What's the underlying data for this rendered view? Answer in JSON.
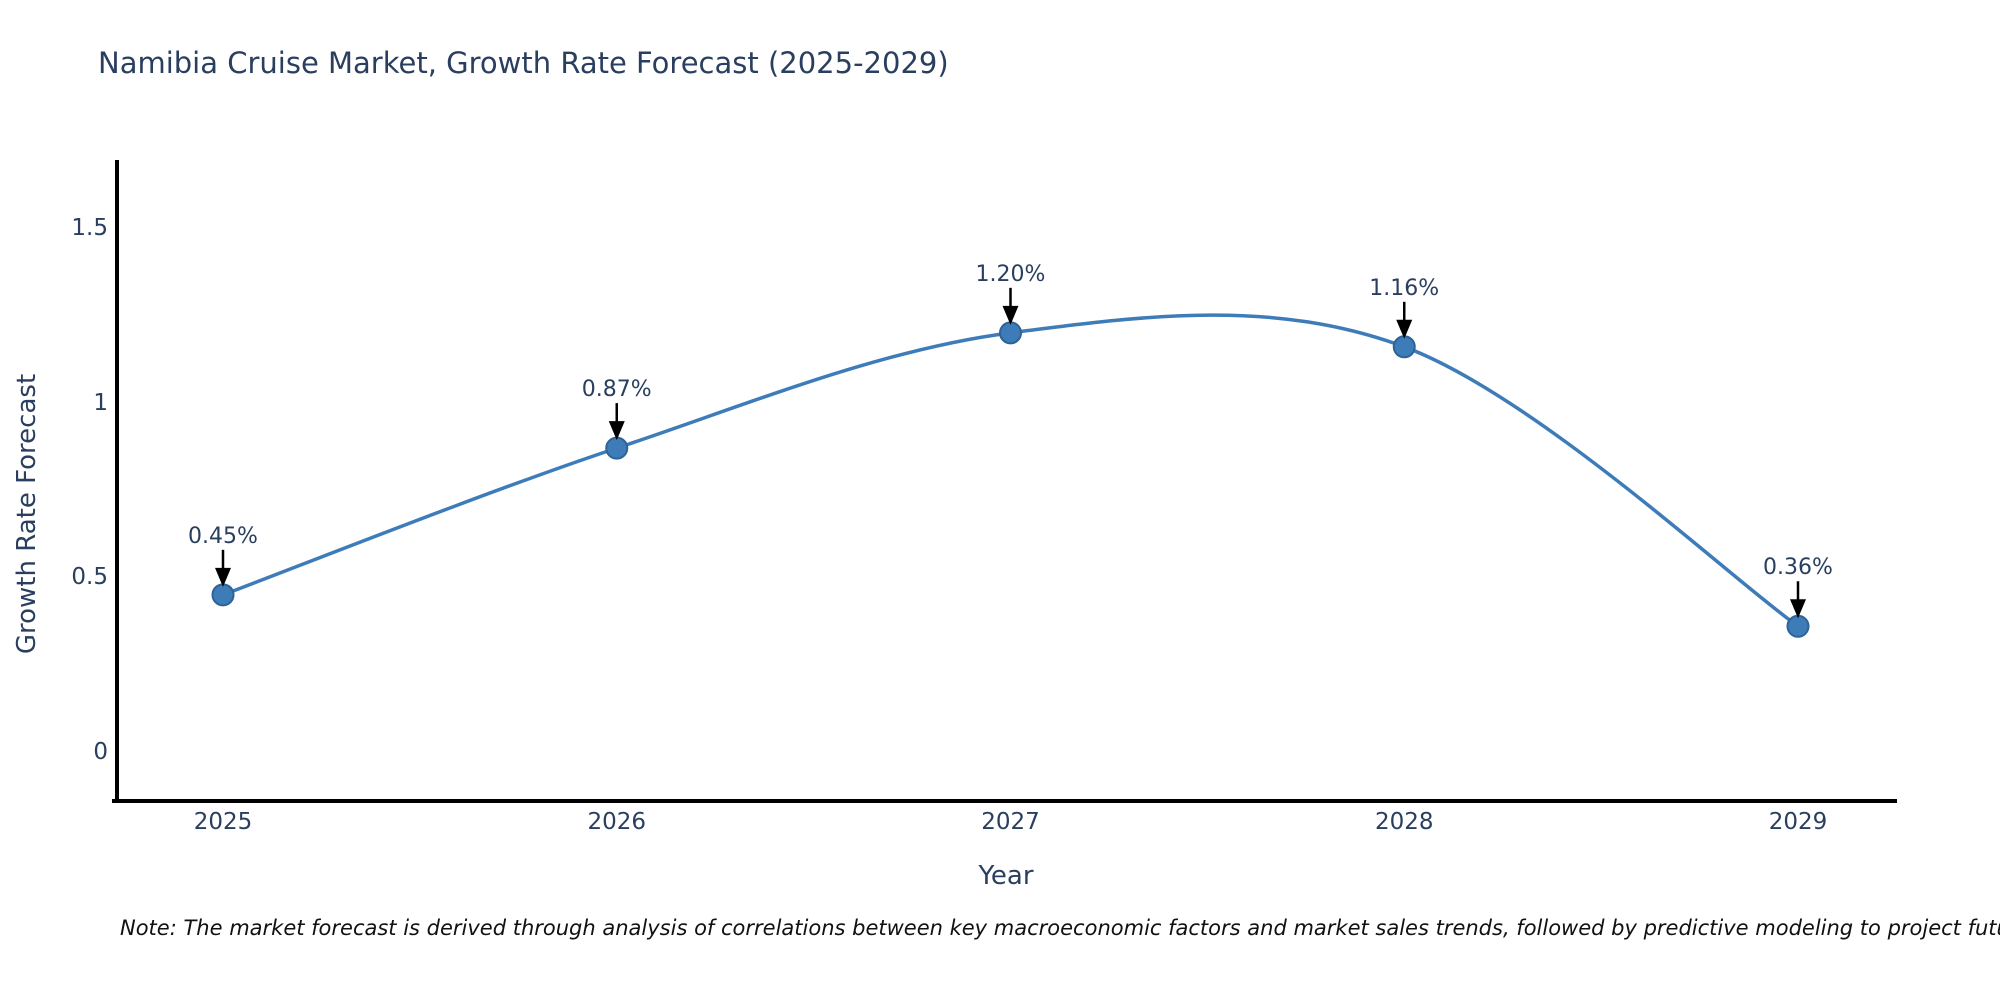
{
  "note": "Note: The market forecast is derived through analysis of correlations between key macroeconomic factors and market sales trends, followed by predictive modeling to project future sales",
  "colors": {
    "line": "#3e7cb9",
    "marker_fill": "#3e7cb9",
    "marker_edge": "#2d6396",
    "axis_line": "#000000",
    "arrow": "#000000",
    "title_text": "#2a3f5f",
    "tick_text": "#2a3f5f",
    "annotation_text": "#2a3f5f",
    "note_text": "#111111"
  },
  "chart_data": {
    "type": "line",
    "title": "Namibia Cruise Market, Growth Rate Forecast (2025-2029)",
    "xlabel": "Year",
    "ylabel": "Growth Rate Forecast",
    "categories": [
      "2025",
      "2026",
      "2027",
      "2028",
      "2029"
    ],
    "values": [
      0.45,
      0.87,
      1.2,
      1.16,
      0.36
    ],
    "annotations": [
      "0.45%",
      "0.87%",
      "1.20%",
      "1.16%",
      "0.36%"
    ],
    "series": [
      {
        "name": "Growth Rate Forecast",
        "values": [
          0.45,
          0.87,
          1.2,
          1.16,
          0.36
        ]
      }
    ],
    "ytick_values": [
      0,
      0.5,
      1,
      1.5
    ],
    "ytick_labels": [
      "0",
      "0.5",
      "1",
      "1.5"
    ],
    "ylim": [
      -0.14,
      1.7
    ],
    "line_shape": "spline",
    "grid": false,
    "legend": false,
    "annotation_arrows": true
  }
}
